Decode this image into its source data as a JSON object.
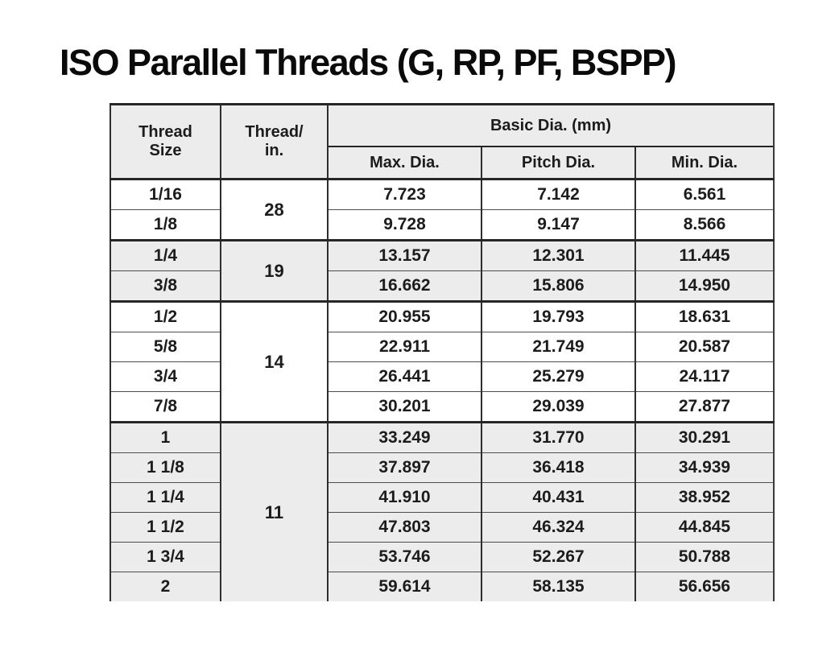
{
  "title": "ISO Parallel Threads (G, RP, PF, BSPP)",
  "colors": {
    "page_background": "#ffffff",
    "row_shade": "#ececec",
    "text": "#1c1c1c",
    "thin_rule": "#4c4c4c",
    "thick_rule": "#262626"
  },
  "table": {
    "headers": {
      "thread_size": "Thread\nSize",
      "threads_per_inch": "Thread/\nin.",
      "basic_dia_group": "Basic Dia. (mm)",
      "max_dia": "Max. Dia.",
      "pitch_dia": "Pitch Dia.",
      "min_dia": "Min. Dia."
    },
    "groups": [
      {
        "tpi": "28",
        "rows": [
          {
            "size": "1/16",
            "max": "7.723",
            "pitch": "7.142",
            "min": "6.561"
          },
          {
            "size": "1/8",
            "max": "9.728",
            "pitch": "9.147",
            "min": "8.566"
          }
        ]
      },
      {
        "tpi": "19",
        "rows": [
          {
            "size": "1/4",
            "max": "13.157",
            "pitch": "12.301",
            "min": "11.445"
          },
          {
            "size": "3/8",
            "max": "16.662",
            "pitch": "15.806",
            "min": "14.950"
          }
        ]
      },
      {
        "tpi": "14",
        "rows": [
          {
            "size": "1/2",
            "max": "20.955",
            "pitch": "19.793",
            "min": "18.631"
          },
          {
            "size": "5/8",
            "max": "22.911",
            "pitch": "21.749",
            "min": "20.587"
          },
          {
            "size": "3/4",
            "max": "26.441",
            "pitch": "25.279",
            "min": "24.117"
          },
          {
            "size": "7/8",
            "max": "30.201",
            "pitch": "29.039",
            "min": "27.877"
          }
        ]
      },
      {
        "tpi": "11",
        "rows": [
          {
            "size": "1",
            "max": "33.249",
            "pitch": "31.770",
            "min": "30.291"
          },
          {
            "size": "1 1/8",
            "max": "37.897",
            "pitch": "36.418",
            "min": "34.939"
          },
          {
            "size": "1 1/4",
            "max": "41.910",
            "pitch": "40.431",
            "min": "38.952"
          },
          {
            "size": "1 1/2",
            "max": "47.803",
            "pitch": "46.324",
            "min": "44.845"
          },
          {
            "size": "1 3/4",
            "max": "53.746",
            "pitch": "52.267",
            "min": "50.788"
          },
          {
            "size": "2",
            "max": "59.614",
            "pitch": "58.135",
            "min": "56.656"
          }
        ]
      }
    ]
  }
}
